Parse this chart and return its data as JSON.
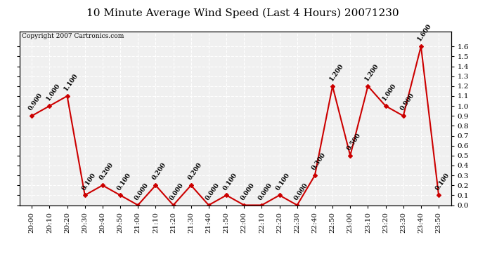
{
  "title": "10 Minute Average Wind Speed (Last 4 Hours) 20071230",
  "copyright": "Copyright 2007 Cartronics.com",
  "x_labels": [
    "20:00",
    "20:10",
    "20:20",
    "20:30",
    "20:40",
    "20:50",
    "21:00",
    "21:10",
    "21:20",
    "21:30",
    "21:40",
    "21:50",
    "22:00",
    "22:10",
    "22:20",
    "22:30",
    "22:40",
    "22:50",
    "23:00",
    "23:10",
    "23:20",
    "23:30",
    "23:40",
    "23:50"
  ],
  "y_values": [
    0.9,
    1.0,
    1.1,
    0.1,
    0.2,
    0.1,
    0.0,
    0.2,
    0.0,
    0.2,
    0.0,
    0.1,
    0.0,
    0.0,
    0.1,
    0.0,
    0.3,
    1.2,
    0.5,
    1.2,
    1.0,
    0.9,
    1.6,
    0.1
  ],
  "line_color": "#cc0000",
  "marker": "D",
  "marker_size": 3,
  "ylim": [
    0.0,
    1.75
  ],
  "yticks": [
    0.0,
    0.1,
    0.2,
    0.3,
    0.4,
    0.5,
    0.6,
    0.7,
    0.8,
    0.9,
    1.0,
    1.1,
    1.2,
    1.3,
    1.4,
    1.5,
    1.6
  ],
  "bg_color": "#ffffff",
  "plot_bg_color": "#f0f0f0",
  "grid_color": "#ffffff",
  "title_fontsize": 11,
  "annotation_fontsize": 6.5,
  "label_fontsize": 7.5
}
